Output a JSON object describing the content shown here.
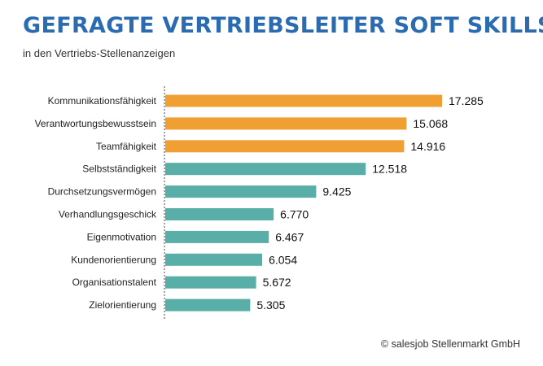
{
  "title": "GEFRAGTE VERTRIEBSLEITER SOFT SKILLS",
  "subtitle": "in den Vertriebs-Stellenanzeigen",
  "credit": "© salesjob Stellenmarkt GmbH",
  "colors": {
    "title": "#2b6cb0",
    "highlight": "#f0a033",
    "base": "#5aaea8",
    "axis": "#444444"
  },
  "chart_data": {
    "type": "bar",
    "orientation": "horizontal",
    "categories": [
      "Kommunikationsfähigkeit",
      "Verantwortungsbewusstsein",
      "Teamfähigkeit",
      "Selbstständigkeit",
      "Durchsetzungsvermögen",
      "Verhandlungsgeschick",
      "Eigenmotivation",
      "Kundenorientierung",
      "Organisationstalent",
      "Zielorientierung"
    ],
    "values": [
      17285,
      15068,
      14916,
      12518,
      9425,
      6770,
      6467,
      6054,
      5672,
      5305
    ],
    "labels": [
      "17.285",
      "15.068",
      "14.916",
      "12.518",
      "9.425",
      "6.770",
      "6.467",
      "6.054",
      "5.672",
      "5.305"
    ],
    "highlighted": [
      true,
      true,
      true,
      false,
      false,
      false,
      false,
      false,
      false,
      false
    ],
    "title": "GEFRAGTE VERTRIEBSLEITER SOFT SKILLS",
    "subtitle": "in den Vertriebs-Stellenanzeigen",
    "xlabel": "",
    "ylabel": "",
    "xlim": [
      0,
      20000
    ],
    "grid": false,
    "legend": "none"
  }
}
